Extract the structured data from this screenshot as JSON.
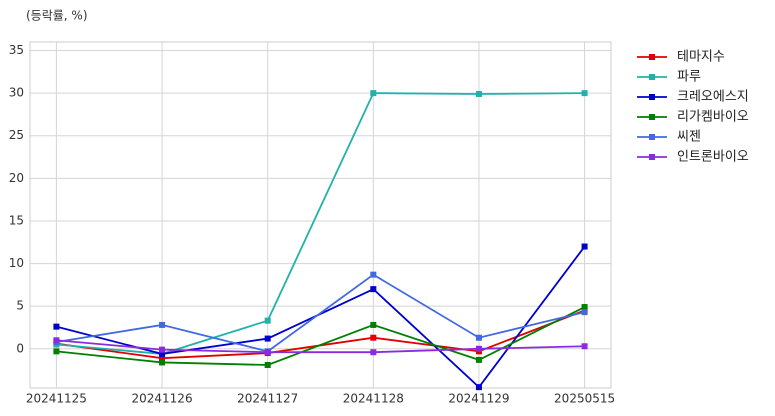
{
  "chart_data": {
    "type": "line",
    "y_label": "(등락률, %)",
    "categories": [
      "20241125",
      "20241126",
      "20241127",
      "20241128",
      "20241129",
      "20250515"
    ],
    "series": [
      {
        "name": "테마지수",
        "color": "#e00000",
        "values": [
          0.6,
          -1.1,
          -0.5,
          1.3,
          -0.3,
          4.5
        ]
      },
      {
        "name": "파루",
        "color": "#20b2aa",
        "values": [
          0.5,
          -0.6,
          3.3,
          30.0,
          29.9,
          30.0
        ]
      },
      {
        "name": "크레오에스지",
        "color": "#0000cd",
        "values": [
          2.6,
          -0.6,
          1.2,
          7.0,
          -4.5,
          12.0
        ]
      },
      {
        "name": "리가켐바이오",
        "color": "#008000",
        "values": [
          -0.3,
          -1.6,
          -1.9,
          2.8,
          -1.3,
          4.9
        ]
      },
      {
        "name": "씨젠",
        "color": "#4169e1",
        "values": [
          0.8,
          2.8,
          -0.3,
          8.7,
          1.3,
          4.3
        ]
      },
      {
        "name": "인트론바이오",
        "color": "#8a2be2",
        "values": [
          1.0,
          -0.1,
          -0.4,
          -0.4,
          0.0,
          0.3
        ]
      }
    ],
    "ylim": [
      -4.6,
      36
    ],
    "yticks": [
      0,
      5,
      10,
      15,
      20,
      25,
      30,
      35
    ],
    "grid": true,
    "legend": "outside-right"
  }
}
